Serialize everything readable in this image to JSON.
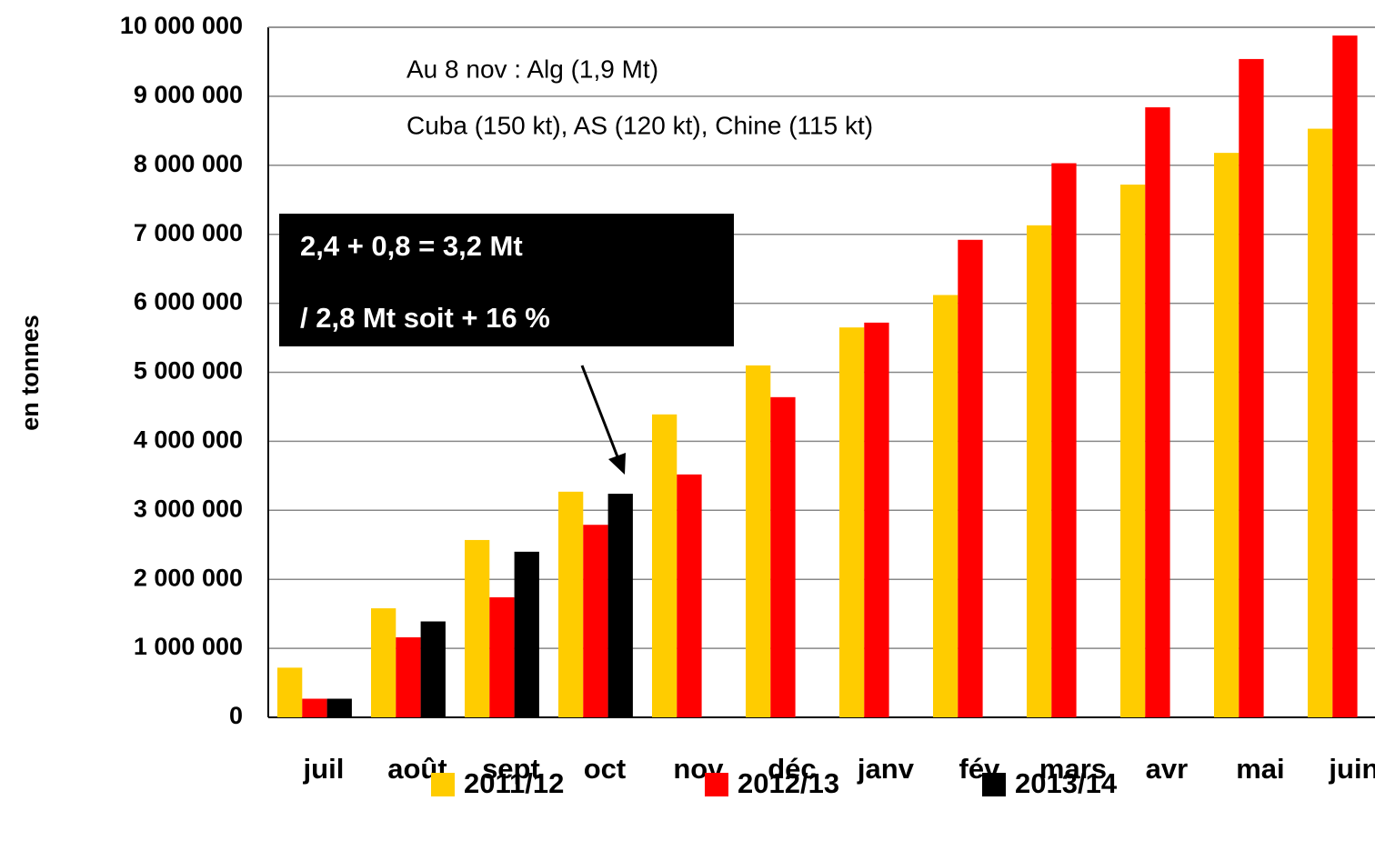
{
  "chart_data": {
    "type": "bar",
    "y_label": "en tonnes",
    "categories": [
      "juil",
      "août",
      "sept",
      "oct",
      "nov",
      "déc",
      "janv",
      "fév",
      "mars",
      "avr",
      "mai",
      "juin"
    ],
    "series": [
      {
        "name": "2011/12",
        "color": "#FFCC00",
        "values": [
          720000,
          1580000,
          2570000,
          3270000,
          4390000,
          5100000,
          5650000,
          6120000,
          7130000,
          7720000,
          8180000,
          8530000
        ]
      },
      {
        "name": "2012/13",
        "color": "#FF0000",
        "values": [
          270000,
          1160000,
          1740000,
          2790000,
          3520000,
          4640000,
          5720000,
          6920000,
          8030000,
          8840000,
          9540000,
          9880000
        ]
      },
      {
        "name": "2013/14",
        "color": "#000000",
        "values": [
          270000,
          1390000,
          2400000,
          3240000,
          null,
          null,
          null,
          null,
          null,
          null,
          null,
          null
        ]
      }
    ],
    "ylim": [
      0,
      10000000
    ],
    "yticks": [
      0,
      {
        "value": 1000000,
        "label": "1 000 000"
      },
      {
        "value": 2000000,
        "label": "2 000 000"
      },
      {
        "value": 3000000,
        "label": "3 000 000"
      },
      {
        "value": 4000000,
        "label": "4 000 000"
      },
      {
        "value": 5000000,
        "label": "5 000 000"
      },
      {
        "value": 6000000,
        "label": "6 000 000"
      },
      {
        "value": 7000000,
        "label": "7 000 000"
      },
      {
        "value": 8000000,
        "label": "8 000 000"
      },
      {
        "value": 9000000,
        "label": "9 000 000"
      },
      {
        "value": 10000000,
        "label": "10 000 000"
      }
    ],
    "grid": true,
    "legend": "bottom",
    "annotations": [
      "Au 8 nov : Alg (1,9 Mt)",
      "Cuba (150 kt), AS (120 kt), Chine (115 kt)",
      "2,4 + 0,8 = 3,2 Mt",
      "/ 2,8 Mt soit + 16 %"
    ]
  }
}
